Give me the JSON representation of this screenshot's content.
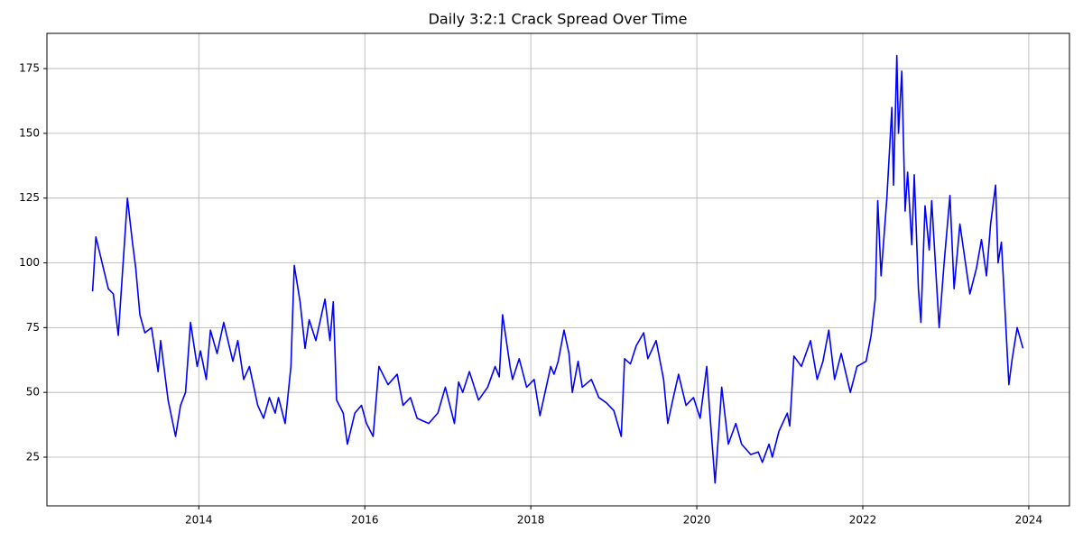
{
  "chart_data": {
    "type": "line",
    "title": "Daily 3:2:1 Crack Spread Over Time",
    "x": [
      2012.72,
      2012.76,
      2012.91,
      2012.97,
      2013.03,
      2013.14,
      2013.2,
      2013.24,
      2013.29,
      2013.35,
      2013.43,
      2013.51,
      2013.54,
      2013.63,
      2013.72,
      2013.78,
      2013.84,
      2013.9,
      2013.98,
      2014.02,
      2014.09,
      2014.14,
      2014.22,
      2014.3,
      2014.41,
      2014.47,
      2014.54,
      2014.61,
      2014.71,
      2014.78,
      2014.85,
      2014.92,
      2014.96,
      2015.04,
      2015.11,
      2015.15,
      2015.22,
      2015.28,
      2015.33,
      2015.41,
      2015.52,
      2015.58,
      2015.62,
      2015.66,
      2015.74,
      2015.79,
      2015.88,
      2015.96,
      2016.02,
      2016.1,
      2016.17,
      2016.28,
      2016.39,
      2016.46,
      2016.55,
      2016.63,
      2016.77,
      2016.88,
      2016.97,
      2017.08,
      2017.13,
      2017.18,
      2017.26,
      2017.37,
      2017.48,
      2017.57,
      2017.62,
      2017.66,
      2017.75,
      2017.78,
      2017.86,
      2017.95,
      2018.04,
      2018.11,
      2018.24,
      2018.28,
      2018.33,
      2018.4,
      2018.46,
      2018.5,
      2018.57,
      2018.62,
      2018.73,
      2018.82,
      2018.91,
      2019.0,
      2019.09,
      2019.13,
      2019.2,
      2019.27,
      2019.36,
      2019.41,
      2019.51,
      2019.6,
      2019.65,
      2019.71,
      2019.78,
      2019.87,
      2019.96,
      2020.04,
      2020.12,
      2020.15,
      2020.22,
      2020.26,
      2020.3,
      2020.38,
      2020.47,
      2020.54,
      2020.65,
      2020.74,
      2020.79,
      2020.87,
      2020.91,
      2020.99,
      2021.09,
      2021.12,
      2021.17,
      2021.26,
      2021.37,
      2021.45,
      2021.52,
      2021.59,
      2021.66,
      2021.74,
      2021.85,
      2021.93,
      2022.04,
      2022.1,
      2022.15,
      2022.18,
      2022.22,
      2022.29,
      2022.35,
      2022.37,
      2022.41,
      2022.43,
      2022.47,
      2022.51,
      2022.54,
      2022.59,
      2022.62,
      2022.67,
      2022.7,
      2022.75,
      2022.8,
      2022.83,
      2022.92,
      2022.98,
      2023.05,
      2023.1,
      2023.17,
      2023.29,
      2023.37,
      2023.43,
      2023.49,
      2023.54,
      2023.6,
      2023.63,
      2023.67,
      2023.7,
      2023.76,
      2023.8,
      2023.86,
      2023.93
    ],
    "series": [
      {
        "color": "#0000ff",
        "values": [
          89,
          110,
          90,
          88,
          72,
          125,
          108,
          98,
          80,
          73,
          75,
          58,
          70,
          47,
          33,
          45,
          50,
          77,
          60,
          66,
          55,
          74,
          65,
          77,
          62,
          70,
          55,
          60,
          45,
          40,
          48,
          42,
          48,
          38,
          60,
          99,
          85,
          67,
          78,
          70,
          86,
          70,
          85,
          47,
          42,
          30,
          42,
          45,
          38,
          33,
          60,
          53,
          57,
          45,
          48,
          40,
          38,
          42,
          52,
          38,
          54,
          50,
          58,
          47,
          52,
          60,
          56,
          80,
          60,
          55,
          63,
          52,
          55,
          41,
          60,
          57,
          62,
          74,
          65,
          50,
          62,
          52,
          55,
          48,
          46,
          43,
          33,
          63,
          61,
          68,
          73,
          63,
          70,
          55,
          38,
          47,
          57,
          45,
          48,
          40,
          60,
          45,
          15,
          33,
          52,
          30,
          38,
          30,
          26,
          27,
          23,
          30,
          25,
          35,
          42,
          37,
          64,
          60,
          70,
          55,
          62,
          74,
          55,
          65,
          50,
          60,
          62,
          72,
          86,
          124,
          95,
          125,
          160,
          130,
          180,
          150,
          174,
          120,
          135,
          107,
          134,
          90,
          77,
          122,
          105,
          124,
          75,
          100,
          126,
          90,
          115,
          88,
          98,
          109,
          95,
          115,
          130,
          100,
          108,
          90,
          53,
          63,
          75,
          67
        ]
      }
    ],
    "xlim": [
      2012.17,
      2024.49
    ],
    "ylim": [
      6.2,
      188.6
    ],
    "xticks": [
      2014,
      2016,
      2018,
      2020,
      2022,
      2024
    ],
    "yticks": [
      25,
      50,
      75,
      100,
      125,
      150,
      175
    ],
    "grid": true
  }
}
